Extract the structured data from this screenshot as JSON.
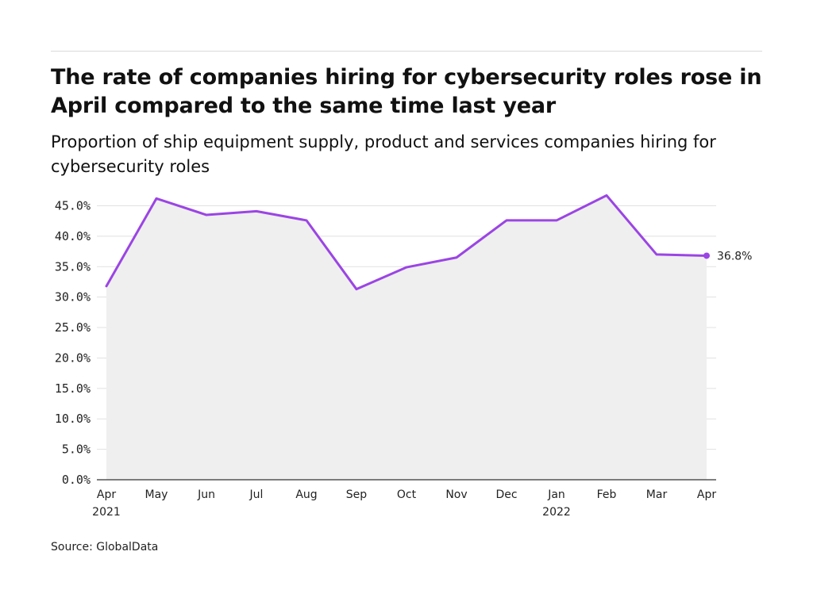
{
  "header": {
    "title": "The rate of companies hiring for cybersecurity roles rose in April compared to the same time last year",
    "subtitle": "Proportion of ship equipment supply, product and services companies hiring for cybersecurity roles"
  },
  "footer": {
    "source": "Source: GlobalData"
  },
  "chart_data": {
    "type": "area",
    "title": "The rate of companies hiring for cybersecurity roles rose in April compared to the same time last year",
    "subtitle": "Proportion of ship equipment supply, product and services companies hiring for cybersecurity roles",
    "xlabel": "",
    "ylabel": "",
    "categories": [
      "Apr",
      "May",
      "Jun",
      "Jul",
      "Aug",
      "Sep",
      "Oct",
      "Nov",
      "Dec",
      "Jan",
      "Feb",
      "Mar",
      "Apr"
    ],
    "category_sublabels": [
      "2021",
      "",
      "",
      "",
      "",
      "",
      "",
      "",
      "",
      "2022",
      "",
      "",
      ""
    ],
    "series": [
      {
        "values": [
          31.8,
          46.2,
          43.5,
          44.1,
          42.6,
          31.3,
          34.9,
          36.5,
          42.6,
          42.6,
          46.7,
          37.0,
          36.8
        ]
      }
    ],
    "ylim": [
      0,
      45
    ],
    "yticks": [
      0,
      5,
      10,
      15,
      20,
      25,
      30,
      35,
      40,
      45
    ],
    "ytick_labels": [
      "0.0%",
      "5.0%",
      "10.0%",
      "15.0%",
      "20.0%",
      "25.0%",
      "30.0%",
      "35.0%",
      "40.0%",
      "45.0%"
    ],
    "grid": true,
    "legend": "none",
    "end_label": "36.8%",
    "colors": {
      "line": "#9b45e4",
      "fill": "#efefef",
      "grid": "#e1e1e1",
      "axis": "#333333"
    }
  }
}
